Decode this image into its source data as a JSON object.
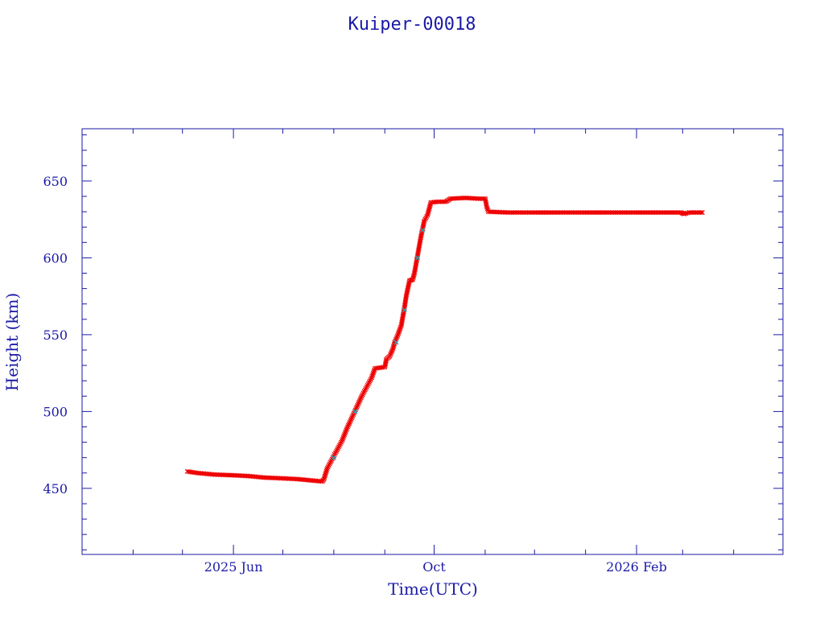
{
  "chart_data": {
    "type": "scatter",
    "title": "Kuiper-00018",
    "xlabel": "Time(UTC)",
    "ylabel": "Height (km)",
    "xlim": [
      "2025-03-01",
      "2026-05-01"
    ],
    "ylim": [
      407,
      684
    ],
    "x_ticks": [
      {
        "date": "2025-06-01",
        "label": "2025 Jun"
      },
      {
        "date": "2025-10-01",
        "label": "Oct"
      },
      {
        "date": "2026-02-01",
        "label": "2026 Feb"
      }
    ],
    "y_ticks": [
      450,
      500,
      550,
      600,
      650
    ],
    "grid": false,
    "colors": {
      "axes": "#1a1aa6",
      "marker": "#ee0000",
      "marker_alt": "#22aabb"
    },
    "series": [
      {
        "marker": "x",
        "color": "#ee0000",
        "points": [
          [
            "2025-05-04",
            461
          ],
          [
            "2025-05-10",
            460
          ],
          [
            "2025-05-20",
            459
          ],
          [
            "2025-06-01",
            458.5
          ],
          [
            "2025-06-10",
            458
          ],
          [
            "2025-06-20",
            457
          ],
          [
            "2025-07-01",
            456.5
          ],
          [
            "2025-07-10",
            456
          ],
          [
            "2025-07-20",
            455
          ],
          [
            "2025-07-25",
            454.5
          ],
          [
            "2025-07-26",
            456
          ],
          [
            "2025-07-28",
            463
          ],
          [
            "2025-07-31",
            469
          ],
          [
            "2025-08-03",
            475
          ],
          [
            "2025-08-06",
            481
          ],
          [
            "2025-08-09",
            489
          ],
          [
            "2025-08-12",
            496
          ],
          [
            "2025-08-15",
            503
          ],
          [
            "2025-08-18",
            510
          ],
          [
            "2025-08-21",
            516
          ],
          [
            "2025-08-24",
            522
          ],
          [
            "2025-08-26",
            528
          ],
          [
            "2025-08-29",
            528.5
          ],
          [
            "2025-09-01",
            529
          ],
          [
            "2025-09-02",
            534
          ],
          [
            "2025-09-04",
            536
          ],
          [
            "2025-09-06",
            541
          ],
          [
            "2025-09-07",
            545
          ],
          [
            "2025-09-09",
            550
          ],
          [
            "2025-09-11",
            556
          ],
          [
            "2025-09-12",
            562
          ],
          [
            "2025-09-13",
            568
          ],
          [
            "2025-09-14",
            575
          ],
          [
            "2025-09-15",
            580
          ],
          [
            "2025-09-16",
            585
          ],
          [
            "2025-09-18",
            586
          ],
          [
            "2025-09-19",
            590
          ],
          [
            "2025-09-20",
            596
          ],
          [
            "2025-09-21",
            602
          ],
          [
            "2025-09-22",
            608
          ],
          [
            "2025-09-23",
            614
          ],
          [
            "2025-09-24",
            619
          ],
          [
            "2025-09-25",
            624
          ],
          [
            "2025-09-27",
            628
          ],
          [
            "2025-09-28",
            632
          ],
          [
            "2025-09-29",
            636
          ],
          [
            "2025-10-03",
            636.5
          ],
          [
            "2025-10-08",
            636.5
          ],
          [
            "2025-10-11",
            638.5
          ],
          [
            "2025-10-20",
            639
          ],
          [
            "2025-10-28",
            638.5
          ],
          [
            "2025-11-01",
            638.5
          ],
          [
            "2025-11-02",
            633
          ],
          [
            "2025-11-03",
            630
          ],
          [
            "2025-11-15",
            629.5
          ],
          [
            "2025-12-01",
            629.5
          ],
          [
            "2025-12-15",
            629.5
          ],
          [
            "2026-01-01",
            629.5
          ],
          [
            "2026-01-15",
            629.5
          ],
          [
            "2026-02-01",
            629.5
          ],
          [
            "2026-02-15",
            629.5
          ],
          [
            "2026-02-28",
            629.5
          ],
          [
            "2026-03-02",
            628.5
          ],
          [
            "2026-03-05",
            629.5
          ],
          [
            "2026-03-13",
            629.5
          ]
        ]
      },
      {
        "marker": "x",
        "color": "#22aabb",
        "points": [
          [
            "2025-08-01",
            470
          ],
          [
            "2025-08-14",
            500
          ],
          [
            "2025-09-08",
            545
          ],
          [
            "2025-09-13",
            566
          ],
          [
            "2025-09-21",
            600
          ],
          [
            "2025-09-24",
            618
          ]
        ]
      }
    ]
  }
}
